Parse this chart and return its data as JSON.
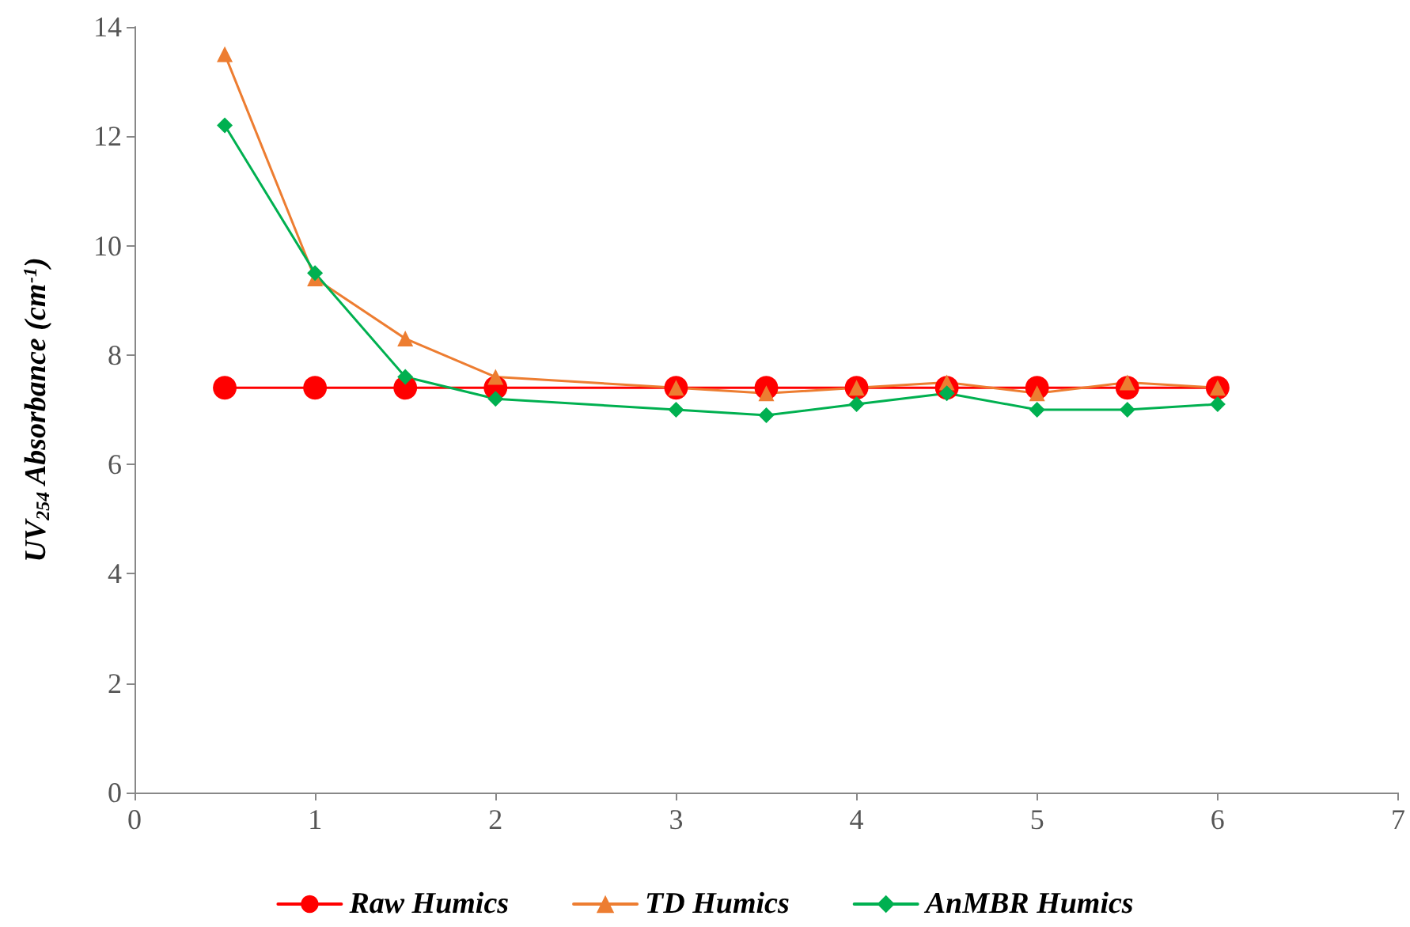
{
  "chart_data": {
    "type": "line",
    "ylabel": "UV$_{254}$ Absorbance (cm$^{-1}$)",
    "x": [
      0.5,
      1,
      1.5,
      2,
      3,
      3.5,
      4,
      4.5,
      5,
      5.5,
      6
    ],
    "xlim": [
      0,
      7
    ],
    "xticks": [
      0,
      1,
      2,
      3,
      4,
      5,
      6,
      7
    ],
    "ylim": [
      0,
      14
    ],
    "yticks": [
      0,
      2,
      4,
      6,
      8,
      10,
      12,
      14
    ],
    "grid": false,
    "legend": "bottom",
    "line_style": "solid",
    "series": [
      {
        "name": "Raw Humics",
        "color": "#ff0000",
        "marker": "circle",
        "values": [
          7.4,
          7.4,
          7.4,
          7.4,
          7.4,
          7.4,
          7.4,
          7.4,
          7.4,
          7.4,
          7.4
        ]
      },
      {
        "name": "TD Humics",
        "color": "#ed7d31",
        "marker": "triangle",
        "values": [
          13.5,
          9.4,
          8.3,
          7.6,
          7.4,
          7.3,
          7.4,
          7.5,
          7.3,
          7.5,
          7.4
        ]
      },
      {
        "name": "AnMBR Humics",
        "color": "#00b050",
        "marker": "diamond",
        "values": [
          12.2,
          9.5,
          7.6,
          7.2,
          7.0,
          6.9,
          7.1,
          7.3,
          7.0,
          7.0,
          7.1
        ]
      }
    ]
  }
}
